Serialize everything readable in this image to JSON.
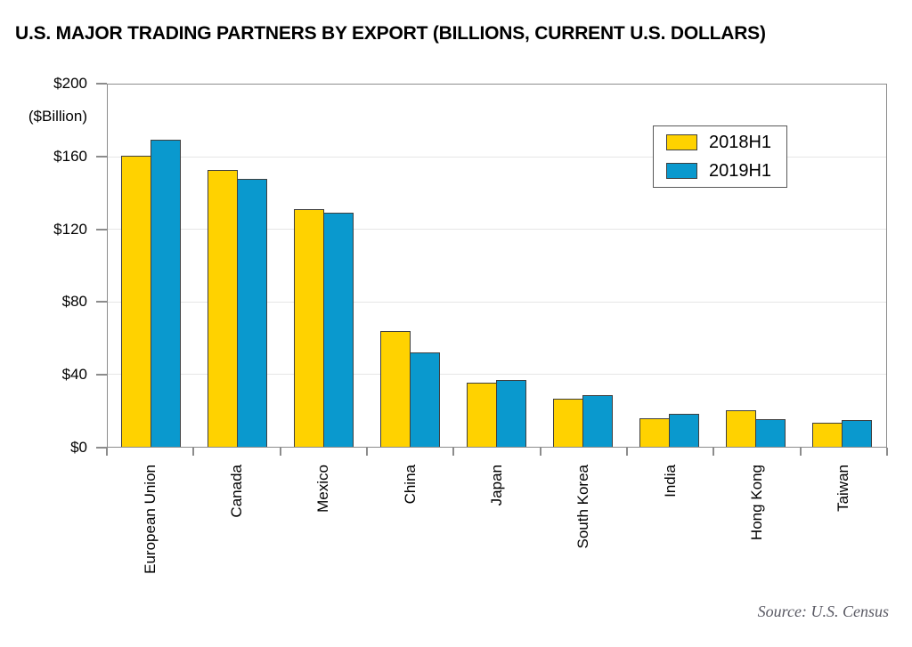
{
  "title": "U.S. MAJOR TRADING PARTNERS BY EXPORT (BILLIONS, CURRENT U.S. DOLLARS)",
  "source": "Source: U.S. Census",
  "chart_data": {
    "type": "bar",
    "title": "U.S. MAJOR TRADING PARTNERS BY EXPORT (BILLIONS, CURRENT U.S. DOLLARS)",
    "unit_label": "($Billion)",
    "categories": [
      "European Union",
      "Canada",
      "Mexico",
      "China",
      "Japan",
      "South Korea",
      "India",
      "Hong Kong",
      "Taiwan"
    ],
    "series": [
      {
        "name": "2018H1",
        "color": "#ffd200",
        "values": [
          161,
          153,
          131.5,
          64,
          35.5,
          26.5,
          16,
          20,
          13.5
        ]
      },
      {
        "name": "2019H1",
        "color": "#0a99ce",
        "values": [
          170,
          148.5,
          129.5,
          52,
          37,
          28.5,
          18,
          15.5,
          15
        ]
      }
    ],
    "ylim": [
      0,
      200
    ],
    "y_ticks": [
      {
        "value": 200,
        "label": "$200"
      },
      {
        "value": 160,
        "label": "$160"
      },
      {
        "value": 120,
        "label": "$120"
      },
      {
        "value": 80,
        "label": "$80"
      },
      {
        "value": 40,
        "label": "$40"
      },
      {
        "value": 0,
        "label": "$0"
      }
    ],
    "grid": true,
    "legend_position": "top-right",
    "xlabel": "",
    "ylabel": "($Billion)"
  }
}
